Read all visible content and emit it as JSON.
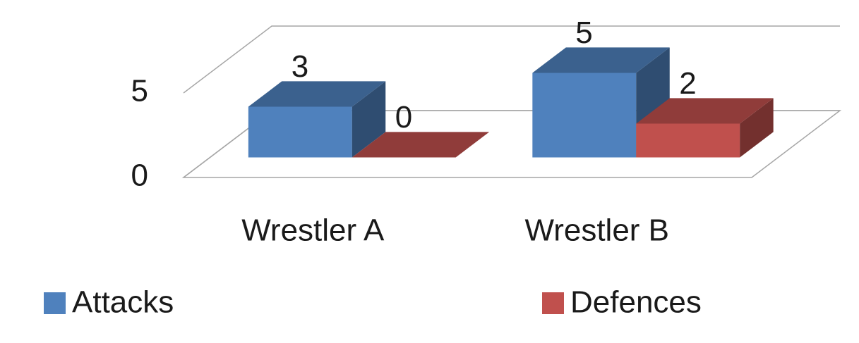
{
  "chart_data": {
    "type": "bar3d",
    "categories": [
      "Wrestler A",
      "Wrestler B"
    ],
    "series": [
      {
        "name": "Attacks",
        "color": "#4f81bd",
        "values": [
          3,
          5
        ]
      },
      {
        "name": "Defences",
        "color": "#c0504d",
        "values": [
          0,
          2
        ]
      }
    ],
    "ylim": [
      0,
      5
    ],
    "yticks": [
      0,
      5
    ],
    "grid": true,
    "legend": "bottom"
  }
}
